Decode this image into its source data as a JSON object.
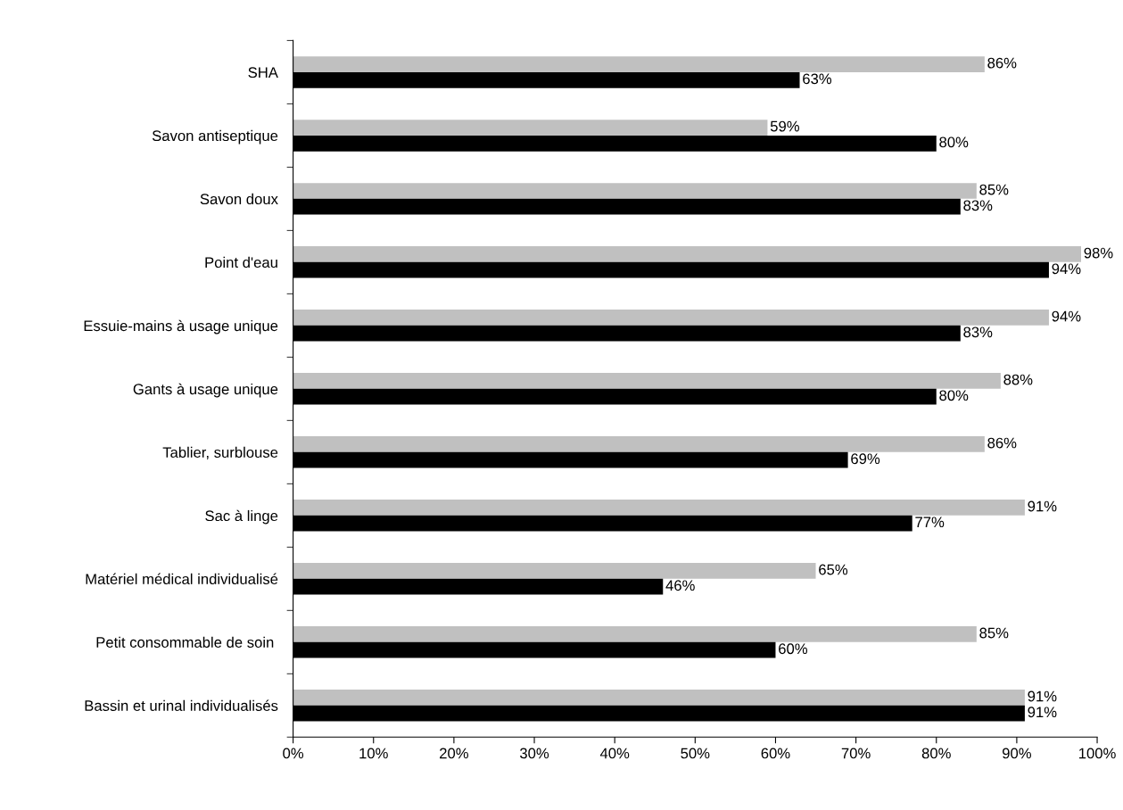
{
  "chart_data": {
    "type": "bar",
    "orientation": "horizontal",
    "categories": [
      "SHA",
      "Savon antiseptique",
      "Savon doux",
      "Point d'eau",
      "Essuie-mains à usage unique",
      "Gants à usage unique",
      "Tablier, surblouse",
      "Sac à linge",
      "Matériel médical individualisé",
      "Petit consommable de soin ",
      "Bassin et urinal individualisés"
    ],
    "series": [
      {
        "color": "#c0c0c0",
        "values": [
          86,
          59,
          85,
          98,
          94,
          88,
          86,
          91,
          65,
          85,
          91
        ],
        "value_labels": [
          "86%",
          "59%",
          "85%",
          "98%",
          "94%",
          "88%",
          "86%",
          "91%",
          "65%",
          "85%",
          "91%"
        ]
      },
      {
        "color": "#000000",
        "values": [
          63,
          80,
          83,
          94,
          83,
          80,
          69,
          77,
          46,
          60,
          91
        ],
        "value_labels": [
          "63%",
          "80%",
          "83%",
          "94%",
          "83%",
          "80%",
          "69%",
          "77%",
          "46%",
          "60%",
          "91%"
        ]
      }
    ],
    "xlim": [
      0,
      100
    ],
    "xticks": [
      {
        "value": 0,
        "label": "0%"
      },
      {
        "value": 10,
        "label": "10%"
      },
      {
        "value": 20,
        "label": "20%"
      },
      {
        "value": 30,
        "label": "30%"
      },
      {
        "value": 40,
        "label": "40%"
      },
      {
        "value": 50,
        "label": "50%"
      },
      {
        "value": 60,
        "label": "60%"
      },
      {
        "value": 70,
        "label": "70%"
      },
      {
        "value": 80,
        "label": "80%"
      },
      {
        "value": 90,
        "label": "90%"
      },
      {
        "value": 100,
        "label": "100%"
      }
    ],
    "grid": false,
    "legend": false
  }
}
